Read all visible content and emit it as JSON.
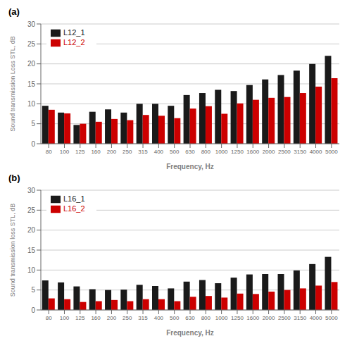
{
  "chart_data": [
    {
      "type": "bar",
      "title": "(a)",
      "categories": [
        "80",
        "100",
        "125",
        "160",
        "200",
        "250",
        "315",
        "400",
        "500",
        "630",
        "800",
        "1000",
        "1250",
        "1600",
        "2000",
        "2500",
        "3150",
        "4000",
        "5000"
      ],
      "series": [
        {
          "name": "L12_1",
          "color": "#1a1a1a",
          "values": [
            9.5,
            7.8,
            4.7,
            8.0,
            8.6,
            7.8,
            10.0,
            10.0,
            9.5,
            12.2,
            12.7,
            13.5,
            13.2,
            14.7,
            16.1,
            17.2,
            18.3,
            20.0,
            22.0
          ]
        },
        {
          "name": "L12_2",
          "color": "#cc0000",
          "values": [
            8.5,
            7.6,
            5.0,
            5.5,
            6.2,
            5.9,
            7.2,
            7.0,
            6.4,
            8.8,
            9.4,
            7.5,
            10.1,
            11.0,
            11.5,
            11.7,
            12.7,
            14.3,
            16.4
          ]
        }
      ],
      "xlabel": "Frequency, Hz",
      "ylabel": "Sound transmission Loss STL, dB",
      "ylim": [
        0,
        30
      ],
      "yticks": [
        0,
        5,
        10,
        15,
        20,
        25,
        30
      ],
      "grid": true,
      "legend": "upper left"
    },
    {
      "type": "bar",
      "title": "(b)",
      "categories": [
        "80",
        "100",
        "125",
        "160",
        "200",
        "250",
        "315",
        "400",
        "500",
        "630",
        "800",
        "1000",
        "1250",
        "1600",
        "2000",
        "2500",
        "3150",
        "4000",
        "5000"
      ],
      "series": [
        {
          "name": "L16_1",
          "color": "#1a1a1a",
          "values": [
            7.4,
            6.9,
            5.9,
            5.2,
            5.0,
            5.1,
            6.3,
            6.0,
            5.4,
            7.1,
            7.5,
            6.7,
            8.1,
            8.9,
            9.0,
            9.0,
            9.9,
            11.5,
            13.3
          ]
        },
        {
          "name": "L16_2",
          "color": "#cc0000",
          "values": [
            2.9,
            2.7,
            2.0,
            2.2,
            2.5,
            2.2,
            2.7,
            2.7,
            2.2,
            3.3,
            3.5,
            3.1,
            4.1,
            4.0,
            4.6,
            5.0,
            5.4,
            6.1,
            7.0
          ]
        }
      ],
      "xlabel": "Frequency, Hz",
      "ylabel": "Sound transmission loss STL, dB",
      "ylim": [
        0,
        30
      ],
      "yticks": [
        0,
        5,
        10,
        15,
        20,
        25,
        30
      ],
      "grid": true,
      "legend": "upper left"
    }
  ]
}
